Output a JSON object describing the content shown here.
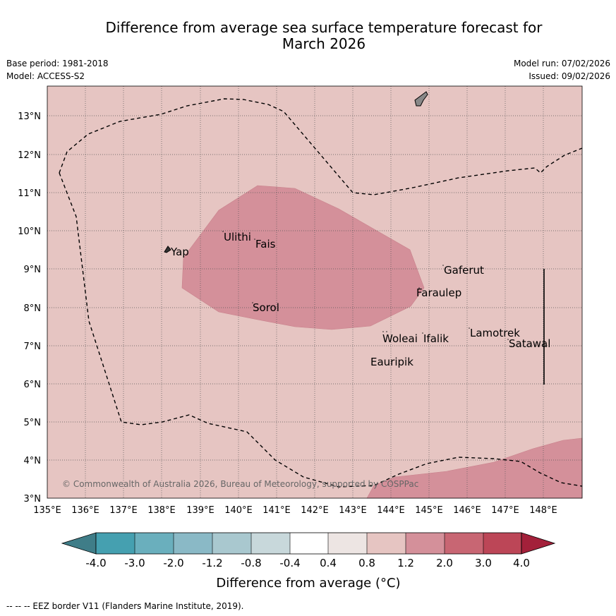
{
  "header": {
    "title_line1": "Difference from average sea surface temperature forecast for",
    "title_line2": "March 2026",
    "base_period": "Base period: 1981-2018",
    "model": "Model: ACCESS-S2",
    "model_run": "Model run: 07/02/2026",
    "issued": "Issued: 09/02/2026"
  },
  "map": {
    "lon_labels": [
      "135°E",
      "136°E",
      "137°E",
      "138°E",
      "139°E",
      "140°E",
      "141°E",
      "142°E",
      "143°E",
      "144°E",
      "145°E",
      "146°E",
      "147°E",
      "148°E"
    ],
    "lat_labels": [
      "13°N",
      "12°N",
      "11°N",
      "10°N",
      "9°N",
      "8°N",
      "7°N",
      "6°N",
      "5°N",
      "4°N",
      "3°N"
    ],
    "places": [
      "Ulithi",
      "Fais",
      "Yap",
      "Gaferut",
      "Faraulep",
      "Sorol",
      "Lamotrek",
      "Woleai",
      "Ifalik",
      "Satawal",
      "Eauripik"
    ],
    "copyright": "© Commonwealth of Australia 2026, Bureau of Meteorology, supported by COSPPac",
    "background_anomaly_color": "#e6c5c2",
    "warm_anomaly_color": "#d4909a"
  },
  "colorbar": {
    "ticks": [
      "-4.0",
      "-3.0",
      "-2.0",
      "-1.2",
      "-0.8",
      "-0.4",
      "0.4",
      "0.8",
      "1.2",
      "2.0",
      "3.0",
      "4.0"
    ],
    "colors": [
      "#3f7d88",
      "#45a0b0",
      "#6aafbd",
      "#8ab9c6",
      "#a9c8cf",
      "#c8d8db",
      "#ffffff",
      "#ede5e3",
      "#e6c5c2",
      "#d4909a",
      "#c86673",
      "#bc4657",
      "#a3203a"
    ],
    "label": "Difference from average (°C)"
  },
  "footer": {
    "eez_note": "--  --  -- EEZ border V11 (Flanders Marine Institute, 2019)."
  }
}
